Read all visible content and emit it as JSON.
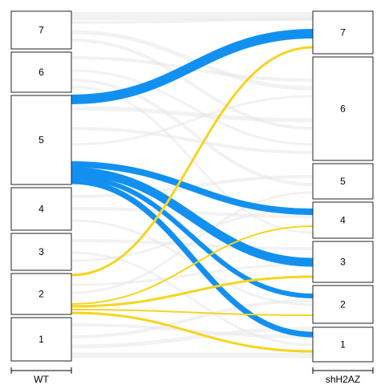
{
  "chart_data": {
    "type": "alluvial",
    "axes": [
      {
        "label": "WT",
        "strata": [
          "1",
          "2",
          "3",
          "4",
          "5",
          "6",
          "7"
        ]
      },
      {
        "label": "shH2AZ",
        "strata": [
          "1",
          "2",
          "3",
          "4",
          "5",
          "6",
          "7"
        ]
      }
    ],
    "highlighted_flows": [
      {
        "from": "5",
        "to": "7",
        "color": "#1290f0",
        "weight": 12
      },
      {
        "from": "5",
        "to": "4",
        "color": "#1290f0",
        "weight": 8
      },
      {
        "from": "5",
        "to": "3",
        "color": "#1290f0",
        "weight": 11
      },
      {
        "from": "5",
        "to": "2",
        "color": "#1290f0",
        "weight": 6
      },
      {
        "from": "5",
        "to": "1",
        "color": "#1290f0",
        "weight": 7
      },
      {
        "from": "2",
        "to": "7",
        "color": "#f7d420",
        "weight": 3
      },
      {
        "from": "2",
        "to": "4",
        "color": "#f7d420",
        "weight": 2
      },
      {
        "from": "2",
        "to": "3",
        "color": "#f7d420",
        "weight": 3
      },
      {
        "from": "2",
        "to": "2",
        "color": "#f7d420",
        "weight": 2
      },
      {
        "from": "2",
        "to": "1",
        "color": "#f7d420",
        "weight": 3
      }
    ],
    "background_flow_color": "#e8e8e8"
  }
}
